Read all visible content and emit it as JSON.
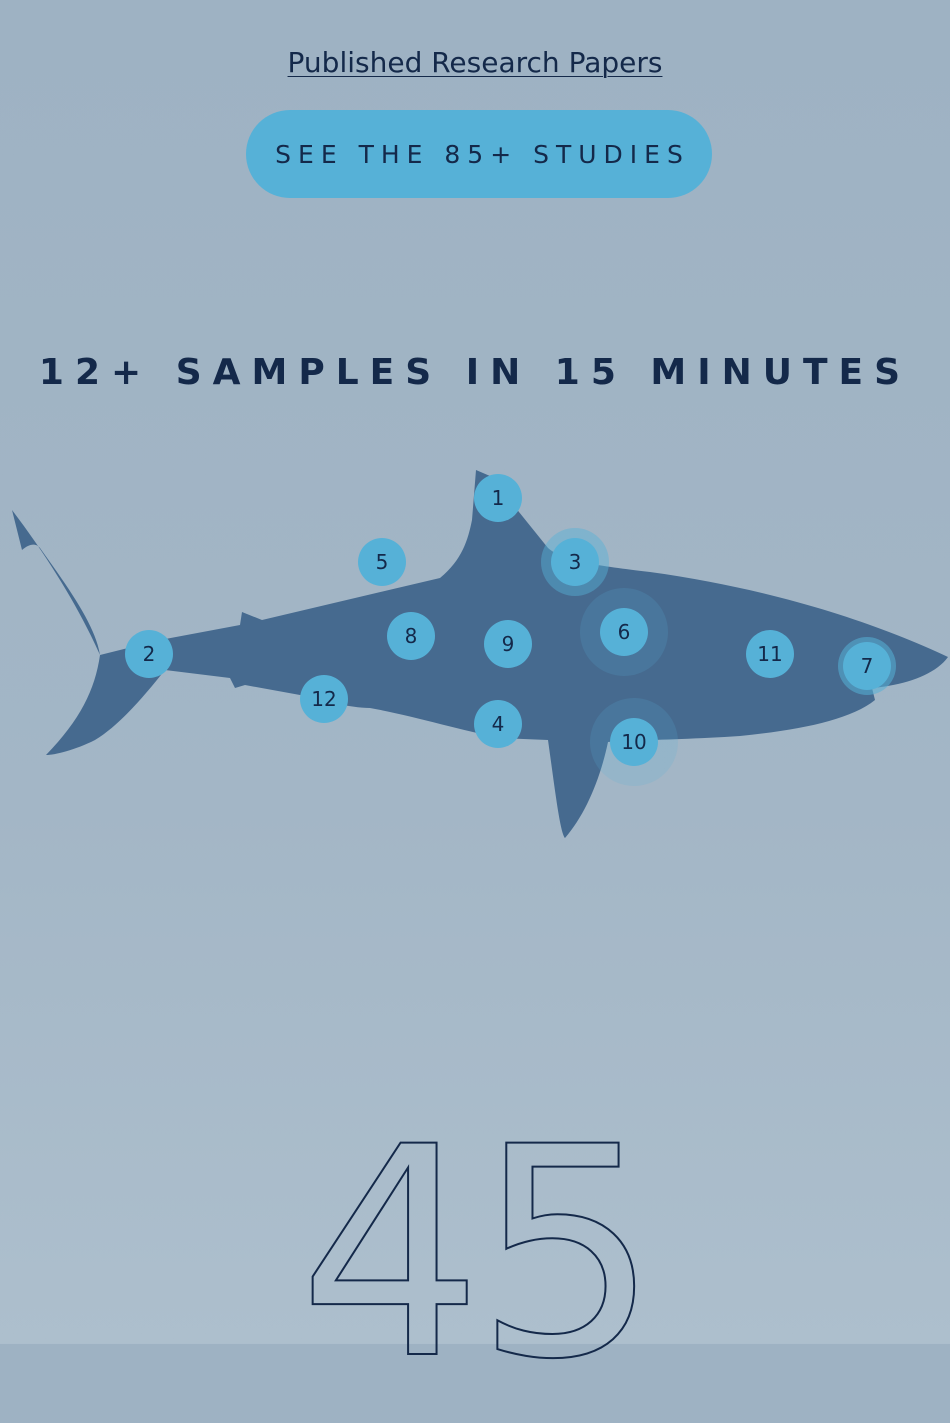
{
  "links": {
    "papers_label": "Published Research Papers"
  },
  "cta": {
    "label": "SEE THE 85+ STUDIES"
  },
  "samples": {
    "heading": "12+ SAMPLES IN 15 MINUTES",
    "hotspots": [
      {
        "label": "1"
      },
      {
        "label": "2"
      },
      {
        "label": "3"
      },
      {
        "label": "4"
      },
      {
        "label": "5"
      },
      {
        "label": "6"
      },
      {
        "label": "7"
      },
      {
        "label": "8"
      },
      {
        "label": "9"
      },
      {
        "label": "10"
      },
      {
        "label": "11"
      },
      {
        "label": "12"
      }
    ]
  },
  "stat": {
    "value": "45"
  },
  "colors": {
    "background": "#9eb2c3",
    "accent": "#56b1d7",
    "shark": "#466a8f",
    "text": "#14294a"
  }
}
